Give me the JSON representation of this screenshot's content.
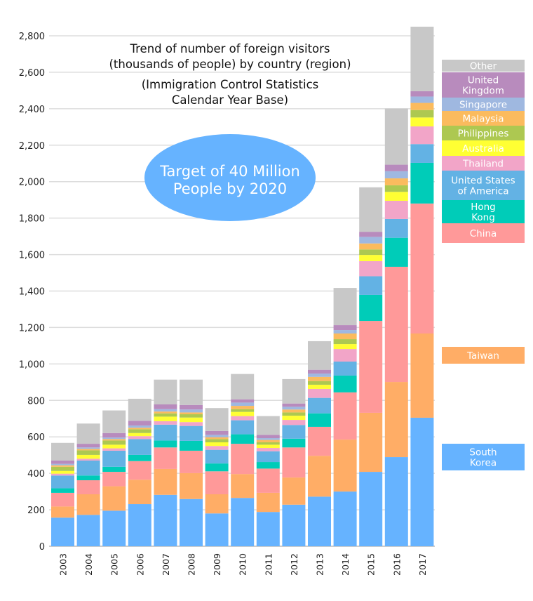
{
  "chart_data": {
    "type": "bar",
    "stacked": true,
    "title": "Trend of number of foreign visitors\n(thousands of people) by country (region)",
    "subtitle": "(Immigration Control Statistics\nCalendar Year Base)",
    "annotation": "Target of 40 Million\nPeople by 2020",
    "xlabel": "",
    "ylabel": "",
    "ylim": [
      0,
      2800
    ],
    "yticks": [
      0,
      200,
      400,
      600,
      800,
      1000,
      1200,
      1400,
      1600,
      1800,
      2000,
      2200,
      2400,
      2600,
      2800
    ],
    "ytick_labels": [
      "0",
      "200",
      "400",
      "600",
      "800",
      "1,000",
      "1,200",
      "1,400",
      "1,600",
      "1,800",
      "2,000",
      "2,200",
      "2,400",
      "2,600",
      "2,800"
    ],
    "grid": true,
    "legend_placement": "right",
    "categories": [
      "2003",
      "2004",
      "2005",
      "2006",
      "2007",
      "2008",
      "2009",
      "2010",
      "2011",
      "2012",
      "2013",
      "2014",
      "2015",
      "2016",
      "2017"
    ],
    "series": [
      {
        "name": "South Korea",
        "color": "#66b3ff",
        "values": [
          157,
          172,
          195,
          231,
          282,
          259,
          180,
          265,
          188,
          228,
          272,
          300,
          408,
          489,
          705
        ]
      },
      {
        "name": "Taiwan",
        "color": "#ffad66",
        "values": [
          61,
          113,
          134,
          134,
          142,
          142,
          105,
          131,
          105,
          149,
          224,
          285,
          324,
          412,
          462
        ]
      },
      {
        "name": "China",
        "color": "#ff9999",
        "values": [
          75,
          77,
          79,
          102,
          118,
          123,
          126,
          166,
          133,
          165,
          159,
          259,
          504,
          632,
          713
        ]
      },
      {
        "name": "Hong Kong",
        "color": "#00ccb8",
        "values": [
          25,
          26,
          28,
          34,
          38,
          54,
          43,
          52,
          36,
          48,
          74,
          92,
          143,
          159,
          223
        ]
      },
      {
        "name": "United States of America",
        "color": "#63b2e4",
        "values": [
          70,
          82,
          88,
          87,
          87,
          82,
          75,
          77,
          59,
          75,
          85,
          77,
          102,
          103,
          103
        ]
      },
      {
        "name": "Thailand",
        "color": "#f2a5c8",
        "values": [
          10,
          10,
          13,
          16,
          19,
          21,
          21,
          23,
          18,
          28,
          49,
          69,
          83,
          100,
          97
        ]
      },
      {
        "name": "Australia",
        "color": "#ffff33",
        "values": [
          15,
          21,
          20,
          17,
          25,
          25,
          20,
          23,
          18,
          23,
          23,
          27,
          34,
          49,
          49
        ]
      },
      {
        "name": "Philippines",
        "color": "#adc851",
        "values": [
          23,
          25,
          23,
          21,
          18,
          18,
          18,
          15,
          13,
          18,
          20,
          27,
          30,
          36,
          41
        ]
      },
      {
        "name": "Malaysia",
        "color": "#fbbb5e",
        "values": [
          8,
          8,
          8,
          8,
          10,
          10,
          10,
          18,
          13,
          16,
          23,
          31,
          33,
          38,
          39
        ]
      },
      {
        "name": "Singapore",
        "color": "#9fb8e0",
        "values": [
          8,
          8,
          8,
          12,
          13,
          16,
          13,
          18,
          10,
          15,
          18,
          19,
          36,
          39,
          35
        ]
      },
      {
        "name": "United Kingdom",
        "color": "#b88bbd",
        "values": [
          18,
          20,
          25,
          26,
          26,
          25,
          21,
          18,
          18,
          18,
          21,
          27,
          28,
          36,
          29
        ]
      },
      {
        "name": "Other",
        "color": "#c8c8c8",
        "values": [
          97,
          111,
          124,
          121,
          136,
          139,
          126,
          139,
          103,
          134,
          157,
          204,
          244,
          308,
          354
        ]
      }
    ],
    "legend_labels": [
      "South\nKorea",
      "Taiwan",
      "China",
      "Hong\nKong",
      "United States\nof America",
      "Thailand",
      "Australia",
      "Philippines",
      "Malaysia",
      "Singapore",
      "United\nKingdom",
      "Other"
    ],
    "annotation_color": "#66b3ff"
  }
}
